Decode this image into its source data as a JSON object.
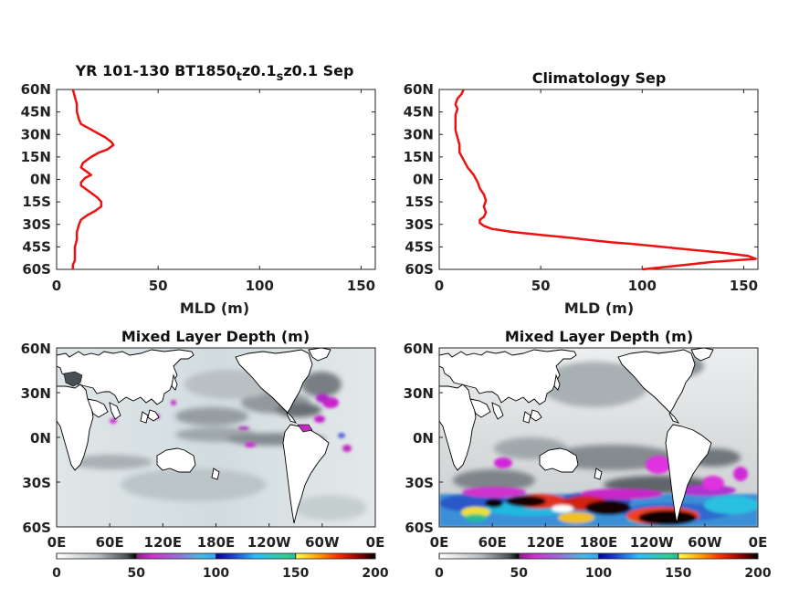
{
  "colors": {
    "profile_line": "#ee1111",
    "axis": "#222222",
    "land": "#ffffff",
    "coast": "#000000"
  },
  "chart_data": [
    {
      "type": "line",
      "title": "YR 101-130 BT1850",
      "title_parts": [
        {
          "text": "YR 101-130 BT1850",
          "sub": false
        },
        {
          "text": "t",
          "sub": true
        },
        {
          "text": "z0.1",
          "sub": false
        },
        {
          "text": "s",
          "sub": true
        },
        {
          "text": "z0.1 Sep",
          "sub": false
        }
      ],
      "xlabel": "MLD (m)",
      "xlim": [
        0,
        157
      ],
      "ylim": [
        -60,
        60
      ],
      "xticks": [
        0,
        50,
        100,
        150
      ],
      "xtick_labels": [
        "0",
        "50",
        "100",
        "150"
      ],
      "yticks": [
        60,
        45,
        30,
        15,
        0,
        -15,
        -30,
        -45,
        -60
      ],
      "ytick_labels": [
        "60N",
        "45N",
        "30N",
        "15N",
        "0N",
        "15S",
        "30S",
        "45S",
        "60S"
      ],
      "series": [
        {
          "x": [
            8,
            9,
            10,
            10,
            11,
            12,
            16,
            20,
            24,
            27,
            28,
            25,
            21,
            17,
            13,
            12,
            15,
            17,
            14,
            12,
            12,
            14,
            17,
            20,
            22,
            22,
            19,
            15,
            12,
            11,
            10,
            10,
            9,
            9,
            9,
            8,
            8
          ],
          "y": [
            60,
            55,
            50,
            45,
            40,
            37,
            34,
            31,
            28,
            25,
            23,
            20,
            18,
            15,
            11,
            8,
            5,
            3,
            1,
            -2,
            -4,
            -6,
            -9,
            -12,
            -15,
            -18,
            -21,
            -24,
            -27,
            -30,
            -35,
            -40,
            -45,
            -50,
            -54,
            -57,
            -60
          ]
        }
      ]
    },
    {
      "type": "line",
      "title": "Climatology Sep",
      "xlabel": "MLD (m)",
      "xlim": [
        0,
        157
      ],
      "ylim": [
        -60,
        60
      ],
      "xticks": [
        0,
        50,
        100,
        150
      ],
      "xtick_labels": [
        "0",
        "50",
        "100",
        "150"
      ],
      "yticks": [
        60,
        45,
        30,
        15,
        0,
        -15,
        -30,
        -45,
        -60
      ],
      "ytick_labels": [
        "60N",
        "45N",
        "30N",
        "15N",
        "0N",
        "15S",
        "30S",
        "45S",
        "60S"
      ],
      "series": [
        {
          "x": [
            12,
            11,
            9,
            8,
            9,
            8,
            8,
            8,
            9,
            10,
            10,
            12,
            14,
            17,
            19,
            20,
            22,
            23,
            22,
            23,
            22,
            20,
            20,
            22,
            26,
            36,
            50,
            65,
            78,
            85,
            95,
            110,
            125,
            140,
            152,
            156,
            135,
            100
          ],
          "y": [
            60,
            57,
            54,
            50,
            47,
            43,
            38,
            33,
            28,
            23,
            18,
            13,
            8,
            3,
            -2,
            -6,
            -10,
            -14,
            -18,
            -22,
            -25,
            -27,
            -29,
            -31,
            -33,
            -35,
            -37,
            -39,
            -41,
            -42,
            -43,
            -45,
            -47,
            -49,
            -51,
            -53,
            -55,
            -60
          ]
        }
      ]
    },
    {
      "type": "heatmap",
      "title": "Mixed Layer Depth (m)",
      "xtick_labels": [
        "0E",
        "60E",
        "120E",
        "180E",
        "120W",
        "60W",
        "0E"
      ],
      "ytick_labels": [
        "60N",
        "30N",
        "0N",
        "30S",
        "60S"
      ],
      "colorbar": {
        "range": [
          0,
          200
        ],
        "ticks": [
          "0",
          "50",
          "100",
          "150",
          "200"
        ]
      },
      "field_character": "mostly light grey 0-50 m; darker bands in tropical Pacific and North Atlantic; scattered magenta 50-70 m patches"
    },
    {
      "type": "heatmap",
      "title": "Mixed Layer Depth (m)",
      "xtick_labels": [
        "0E",
        "60E",
        "120E",
        "180E",
        "120W",
        "60W",
        "0E"
      ],
      "ytick_labels": [
        "60N",
        "30N",
        "0N",
        "30S",
        "60S"
      ],
      "colorbar": {
        "range": [
          0,
          200
        ],
        "ticks": [
          "0",
          "50",
          "100",
          "150",
          "200"
        ]
      },
      "field_character": "patchy grey 0-50 m in north; deep Southern Ocean band 40-60S with blue, yellow, red and black values up to 200 m"
    }
  ]
}
